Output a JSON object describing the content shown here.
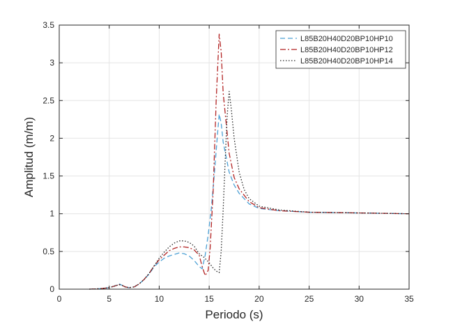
{
  "chart_data": {
    "type": "line",
    "xlabel": "Periodo (s)",
    "ylabel": "Amplitud (m/m)",
    "xlim": [
      0,
      35
    ],
    "ylim": [
      0,
      3.5
    ],
    "xticks": [
      0,
      5,
      10,
      15,
      20,
      25,
      30,
      35
    ],
    "yticks": [
      0,
      0.5,
      1,
      1.5,
      2,
      2.5,
      3,
      3.5
    ],
    "xtick_labels": [
      "0",
      "5",
      "10",
      "15",
      "20",
      "25",
      "30",
      "35"
    ],
    "ytick_labels": [
      "0",
      "0.5",
      "1",
      "1.5",
      "2",
      "2.5",
      "3",
      "3.5"
    ],
    "grid": true,
    "legend_position": "top-right",
    "series": [
      {
        "name": "L85B20H40D20BP10HP10",
        "color": "#4a9fd4",
        "dash": "dashed",
        "x": [
          3,
          4,
          5,
          5.5,
          6,
          6.3,
          6.6,
          7,
          7.5,
          8,
          8.5,
          9,
          9.5,
          10,
          10.5,
          11,
          11.5,
          12,
          12.5,
          13,
          13.5,
          14,
          14.3,
          14.6,
          14.9,
          15.2,
          15.5,
          15.8,
          16.0,
          16.2,
          16.4,
          16.7,
          17,
          17.5,
          18,
          19,
          20,
          22,
          25,
          30,
          35
        ],
        "y": [
          0,
          0.005,
          0.02,
          0.04,
          0.07,
          0.05,
          0.03,
          0.02,
          0.03,
          0.07,
          0.13,
          0.2,
          0.3,
          0.36,
          0.41,
          0.44,
          0.46,
          0.48,
          0.47,
          0.44,
          0.38,
          0.3,
          0.27,
          0.45,
          0.72,
          1.05,
          1.5,
          2.0,
          2.32,
          2.2,
          1.95,
          1.75,
          1.55,
          1.38,
          1.27,
          1.13,
          1.07,
          1.04,
          1.02,
          1.01,
          1.0
        ]
      },
      {
        "name": "L85B20H40D20BP10HP12",
        "color": "#b22222",
        "dash": "dashdot",
        "x": [
          3,
          4,
          5,
          5.5,
          6,
          6.3,
          6.6,
          7,
          7.5,
          8,
          8.5,
          9,
          9.5,
          10,
          10.5,
          11,
          11.5,
          12,
          12.5,
          13,
          13.5,
          14,
          14.3,
          14.6,
          14.9,
          15.1,
          15.4,
          15.7,
          16.0,
          16.2,
          16.4,
          16.7,
          17,
          17.5,
          18,
          19,
          20,
          22,
          25,
          30,
          35
        ],
        "y": [
          0,
          0.005,
          0.02,
          0.04,
          0.06,
          0.05,
          0.03,
          0.02,
          0.03,
          0.07,
          0.13,
          0.21,
          0.31,
          0.39,
          0.45,
          0.51,
          0.54,
          0.56,
          0.56,
          0.55,
          0.52,
          0.45,
          0.3,
          0.18,
          0.25,
          0.55,
          1.3,
          2.5,
          3.38,
          3.15,
          2.6,
          2.2,
          1.8,
          1.48,
          1.33,
          1.16,
          1.08,
          1.04,
          1.02,
          1.01,
          1.0
        ]
      },
      {
        "name": "L85B20H40D20BP10HP14",
        "color": "#222222",
        "dash": "dotted",
        "x": [
          3,
          4,
          5,
          5.5,
          6,
          6.3,
          6.6,
          7,
          7.5,
          8,
          8.5,
          9,
          9.5,
          10,
          10.5,
          11,
          11.5,
          12,
          12.5,
          13,
          13.5,
          14,
          14.5,
          15,
          15.4,
          15.7,
          16.0,
          16.2,
          16.4,
          16.6,
          16.8,
          17.0,
          17.2,
          17.5,
          18,
          18.5,
          19,
          20,
          22,
          25,
          30,
          35
        ],
        "y": [
          0,
          0.005,
          0.02,
          0.04,
          0.06,
          0.05,
          0.03,
          0.02,
          0.03,
          0.07,
          0.13,
          0.21,
          0.31,
          0.41,
          0.49,
          0.56,
          0.61,
          0.64,
          0.64,
          0.62,
          0.57,
          0.47,
          0.42,
          0.35,
          0.28,
          0.24,
          0.22,
          0.5,
          1.05,
          1.7,
          2.3,
          2.62,
          2.4,
          2.0,
          1.55,
          1.32,
          1.2,
          1.1,
          1.05,
          1.02,
          1.01,
          1.0
        ]
      }
    ]
  }
}
